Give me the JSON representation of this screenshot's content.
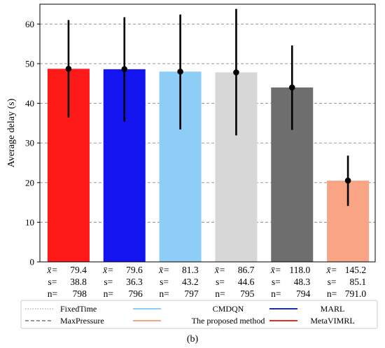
{
  "chart_data": {
    "type": "bar",
    "ylabel": "Average delay (s)",
    "ylim": [
      0,
      65
    ],
    "yticks": [
      0,
      10,
      20,
      30,
      40,
      50,
      60
    ],
    "grid": "horizontal-dashed",
    "bars": [
      {
        "value": 48.7,
        "err_low": 36.4,
        "err_high": 61.0,
        "color": "#ff1a1a",
        "stats": {
          "mean": "79.4",
          "s": "38.8",
          "n": "798"
        }
      },
      {
        "value": 48.6,
        "err_low": 35.4,
        "err_high": 61.7,
        "color": "#1414f0",
        "stats": {
          "mean": "79.6",
          "s": "36.3",
          "n": "796"
        }
      },
      {
        "value": 48.0,
        "err_low": 33.4,
        "err_high": 62.4,
        "color": "#8ecdf5",
        "stats": {
          "mean": "81.3",
          "s": "43.2",
          "n": "797"
        }
      },
      {
        "value": 47.8,
        "err_low": 31.9,
        "err_high": 63.8,
        "color": "#d7d7d7",
        "stats": {
          "mean": "86.7",
          "s": "44.6",
          "n": "795"
        }
      },
      {
        "value": 44.0,
        "err_low": 33.3,
        "err_high": 54.6,
        "color": "#6e6e6e",
        "stats": {
          "mean": "118.0",
          "s": "48.3",
          "n": "794"
        }
      },
      {
        "value": 20.5,
        "err_low": 14.1,
        "err_high": 26.8,
        "color": "#f9a585",
        "stats": {
          "mean": "145.2",
          "s": "85.1",
          "n": "791.0"
        }
      }
    ],
    "stat_labels": {
      "mean": "x̄=",
      "s": "s=",
      "n": "n="
    },
    "legend": [
      {
        "label": "FixedTime",
        "color": "#bbbbbb",
        "style": "dotted"
      },
      {
        "label": "CMDQN",
        "color": "#8ecdf5",
        "style": "solid"
      },
      {
        "label": "MARL",
        "color": "#1a2fa8",
        "style": "solid"
      },
      {
        "label": "MaxPressure",
        "color": "#777777",
        "style": "dashed"
      },
      {
        "label": "The proposed method",
        "color": "#f9a585",
        "style": "solid"
      },
      {
        "label": "MetaVIMRL",
        "color": "#e03020",
        "style": "solid"
      }
    ],
    "caption": "(b)"
  }
}
